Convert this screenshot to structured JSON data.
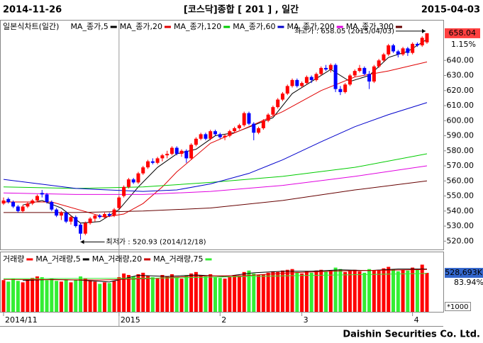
{
  "header": {
    "start": "2014-11-26",
    "title": "[코스닥]종합 [ 201 ] , 일간",
    "end": "2015-04-03"
  },
  "chart_data": [
    {
      "type": "candlestick",
      "title": "일본식차트(일간)",
      "categories": [
        "2014/11",
        null,
        null,
        null,
        null,
        null,
        null,
        null,
        null,
        null,
        null,
        null,
        null,
        null,
        null,
        null,
        null,
        null,
        null,
        null,
        null,
        null,
        null,
        null,
        "2015",
        null,
        null,
        null,
        null,
        null,
        null,
        null,
        null,
        null,
        null,
        null,
        null,
        null,
        null,
        null,
        null,
        null,
        null,
        null,
        null,
        "2",
        null,
        null,
        null,
        null,
        null,
        null,
        null,
        null,
        null,
        null,
        null,
        null,
        null,
        null,
        null,
        null,
        "3",
        null,
        null,
        null,
        null,
        null,
        null,
        null,
        null,
        null,
        null,
        null,
        null,
        null,
        null,
        null,
        null,
        null,
        null,
        null,
        null,
        null,
        null,
        "4",
        null,
        null,
        null
      ],
      "ohlc": [
        [
          545,
          549,
          544,
          547
        ],
        [
          548,
          549,
          545,
          546
        ],
        [
          546,
          547,
          542,
          543
        ],
        [
          543,
          544,
          539,
          540
        ],
        [
          540,
          544,
          539,
          543
        ],
        [
          543,
          546,
          542,
          545
        ],
        [
          545,
          548,
          544,
          547
        ],
        [
          547,
          551,
          546,
          550
        ],
        [
          552,
          554,
          549,
          551
        ],
        [
          551,
          552,
          545,
          546
        ],
        [
          546,
          547,
          540,
          541
        ],
        [
          541,
          542,
          536,
          537
        ],
        [
          537,
          540,
          534,
          539
        ],
        [
          539,
          540,
          532,
          533
        ],
        [
          533,
          537,
          531,
          536
        ],
        [
          536,
          537,
          529,
          530
        ],
        [
          531,
          532,
          520.93,
          525
        ],
        [
          525,
          533,
          524,
          532
        ],
        [
          532,
          536,
          531,
          535
        ],
        [
          535,
          538,
          533,
          537
        ],
        [
          537,
          538,
          535,
          536
        ],
        [
          536,
          539,
          535,
          538
        ],
        [
          538,
          539,
          536,
          537
        ],
        [
          537,
          542,
          536,
          541
        ],
        [
          542,
          550,
          541,
          549
        ],
        [
          550,
          557,
          549,
          556
        ],
        [
          556,
          562,
          555,
          561
        ],
        [
          561,
          562,
          558,
          559
        ],
        [
          559,
          566,
          558,
          565
        ],
        [
          565,
          570,
          564,
          569
        ],
        [
          569,
          574,
          568,
          573
        ],
        [
          573,
          575,
          571,
          572
        ],
        [
          572,
          576,
          571,
          575
        ],
        [
          575,
          578,
          573,
          577
        ],
        [
          577,
          580,
          575,
          578
        ],
        [
          578,
          583,
          577,
          582
        ],
        [
          582,
          583,
          577,
          578
        ],
        [
          578,
          581,
          576,
          580
        ],
        [
          580,
          581,
          572,
          575
        ],
        [
          575,
          585,
          574,
          584
        ],
        [
          584,
          589,
          583,
          588
        ],
        [
          588,
          592,
          587,
          591
        ],
        [
          591,
          592,
          587,
          588
        ],
        [
          588,
          594,
          587,
          593
        ],
        [
          593,
          594,
          590,
          591
        ],
        [
          591,
          592,
          588,
          589
        ],
        [
          589,
          591,
          587,
          590
        ],
        [
          590,
          594,
          589,
          593
        ],
        [
          593,
          596,
          592,
          595
        ],
        [
          595,
          598,
          594,
          597
        ],
        [
          597,
          606,
          596,
          605
        ],
        [
          605,
          606,
          597,
          598
        ],
        [
          598,
          599,
          587,
          592
        ],
        [
          592,
          596,
          591,
          595
        ],
        [
          595,
          601,
          594,
          600
        ],
        [
          600,
          605,
          599,
          604
        ],
        [
          604,
          610,
          603,
          609
        ],
        [
          609,
          615,
          608,
          614
        ],
        [
          614,
          619,
          613,
          618
        ],
        [
          618,
          624,
          617,
          623
        ],
        [
          623,
          628,
          622,
          627
        ],
        [
          627,
          628,
          622,
          623
        ],
        [
          623,
          626,
          622,
          625
        ],
        [
          625,
          630,
          624,
          629
        ],
        [
          629,
          630,
          625,
          627
        ],
        [
          627,
          632,
          626,
          631
        ],
        [
          631,
          636,
          630,
          635
        ],
        [
          635,
          637,
          633,
          634
        ],
        [
          634,
          638,
          632,
          637
        ],
        [
          637,
          638,
          619,
          621
        ],
        [
          621,
          623,
          617,
          619
        ],
        [
          619,
          625,
          618,
          624
        ],
        [
          624,
          631,
          623,
          630
        ],
        [
          630,
          634,
          629,
          633
        ],
        [
          633,
          637,
          632,
          635
        ],
        [
          635,
          636,
          630,
          631
        ],
        [
          631,
          633,
          621,
          626
        ],
        [
          626,
          637,
          625,
          636
        ],
        [
          636,
          641,
          635,
          640
        ],
        [
          640,
          645,
          639,
          644
        ],
        [
          644,
          651,
          643,
          650
        ],
        [
          650,
          651,
          645,
          646
        ],
        [
          646,
          647,
          642,
          644
        ],
        [
          644,
          649,
          643,
          648
        ],
        [
          648,
          649,
          643,
          645
        ],
        [
          645,
          652,
          644,
          651
        ],
        [
          651,
          652,
          649,
          650
        ],
        [
          650,
          656,
          649,
          655
        ],
        [
          652,
          658.05,
          651,
          658.04
        ]
      ],
      "up_color": "#ff0000",
      "down_color": "#0000ff",
      "ylim": [
        514.5,
        666
      ],
      "yticks": [
        {
          "value": 520,
          "label": "520.00"
        },
        {
          "value": 530,
          "label": "530.00"
        },
        {
          "value": 540,
          "label": "540.00"
        },
        {
          "value": 550,
          "label": "550.00"
        },
        {
          "value": 560,
          "label": "560.00"
        },
        {
          "value": 570,
          "label": "570.00"
        },
        {
          "value": 580,
          "label": "580.00"
        },
        {
          "value": 590,
          "label": "590.00"
        },
        {
          "value": 600,
          "label": "600.00"
        },
        {
          "value": 610,
          "label": "610.00"
        },
        {
          "value": 620,
          "label": "620.00"
        },
        {
          "value": 630,
          "label": "630.00"
        },
        {
          "value": 640,
          "label": "640.00"
        }
      ],
      "ma": [
        {
          "name": "MA_종가,5",
          "color": "#000000",
          "points": [
            [
              4,
              544
            ],
            [
              8,
              547
            ],
            [
              12,
              542
            ],
            [
              16,
              532
            ],
            [
              20,
              533
            ],
            [
              24,
              541
            ],
            [
              28,
              556
            ],
            [
              32,
              569
            ],
            [
              36,
              578
            ],
            [
              40,
              581
            ],
            [
              44,
              590
            ],
            [
              48,
              592
            ],
            [
              52,
              597
            ],
            [
              56,
              602
            ],
            [
              60,
              618
            ],
            [
              64,
              626
            ],
            [
              68,
              634
            ],
            [
              72,
              626
            ],
            [
              76,
              630
            ],
            [
              80,
              642
            ],
            [
              84,
              646
            ],
            [
              88,
              654
            ]
          ]
        },
        {
          "name": "MA_종가,20",
          "color": "#e00000",
          "points": [
            [
              0,
              546
            ],
            [
              10,
              546
            ],
            [
              21,
              536
            ],
            [
              25,
              538
            ],
            [
              29,
              545
            ],
            [
              33,
              556
            ],
            [
              36,
              566
            ],
            [
              43,
              585
            ],
            [
              51,
              596
            ],
            [
              58,
              606
            ],
            [
              66,
              620
            ],
            [
              73,
              629
            ],
            [
              80,
              633
            ],
            [
              88,
              639
            ]
          ]
        },
        {
          "name": "MA_종가,120",
          "color": "#00cc00",
          "points": [
            [
              0,
              556
            ],
            [
              15,
              555
            ],
            [
              29,
              556
            ],
            [
              43,
              559
            ],
            [
              58,
              563
            ],
            [
              73,
              569
            ],
            [
              88,
              578
            ]
          ]
        },
        {
          "name": "MA_종가,60",
          "color": "#0000cc",
          "points": [
            [
              0,
              561
            ],
            [
              15,
              555
            ],
            [
              29,
              553
            ],
            [
              36,
              554
            ],
            [
              43,
              558
            ],
            [
              51,
              565
            ],
            [
              58,
              574
            ],
            [
              66,
              586
            ],
            [
              73,
              596
            ],
            [
              80,
              604
            ],
            [
              88,
              612
            ]
          ]
        },
        {
          "name": "MA_종가,200",
          "color": "#e000e0",
          "points": [
            [
              0,
              552
            ],
            [
              15,
              551
            ],
            [
              29,
              551
            ],
            [
              43,
              553
            ],
            [
              58,
              557
            ],
            [
              73,
              563
            ],
            [
              88,
              570
            ]
          ]
        },
        {
          "name": "MA_종가,300",
          "color": "#660000",
          "points": [
            [
              0,
              539
            ],
            [
              15,
              539
            ],
            [
              29,
              540
            ],
            [
              43,
              542
            ],
            [
              58,
              547
            ],
            [
              73,
              554
            ],
            [
              88,
              560
            ]
          ]
        }
      ],
      "annotations": [
        {
          "text": "최고가 : 658.05 (2015/04/03)",
          "color": "#ff0000"
        },
        {
          "text": "최저가 : 520.93 (2014/12/18)",
          "color": "#0000ff"
        }
      ],
      "last": {
        "label": "658.04",
        "change": "1.15%",
        "color": "#ff4040"
      }
    },
    {
      "type": "bar",
      "title": "거래량",
      "title_color": "#ff0000",
      "values": [
        430000,
        410000,
        450000,
        420000,
        400000,
        440000,
        460000,
        480000,
        470000,
        430000,
        450000,
        420000,
        410000,
        440000,
        400000,
        430000,
        480000,
        450000,
        420000,
        410000,
        380000,
        400000,
        390000,
        420000,
        470000,
        520000,
        500000,
        480000,
        510000,
        530000,
        490000,
        470000,
        460000,
        500000,
        480000,
        510000,
        470000,
        450000,
        490000,
        520000,
        540000,
        500000,
        480000,
        510000,
        470000,
        460000,
        450000,
        480000,
        500000,
        490000,
        540000,
        560000,
        520000,
        500000,
        510000,
        530000,
        550000,
        540000,
        560000,
        570000,
        580000,
        540000,
        520000,
        550000,
        530000,
        560000,
        570000,
        550000,
        560000,
        600000,
        580000,
        540000,
        560000,
        570000,
        550000,
        530000,
        580000,
        560000,
        570000,
        590000,
        610000,
        580000,
        550000,
        570000,
        560000,
        600000,
        580000,
        640000,
        528693
      ],
      "up_color": "#ff0000",
      "down_color": "#33ee33",
      "ylim": [
        0,
        750000
      ],
      "ma": [
        {
          "name": "MA_거래량,5",
          "color": "#000000",
          "points": [
            [
              4,
              426000
            ],
            [
              10,
              440000
            ],
            [
              16,
              430000
            ],
            [
              22,
              405000
            ],
            [
              28,
              495000
            ],
            [
              34,
              480000
            ],
            [
              40,
              500000
            ],
            [
              46,
              480000
            ],
            [
              52,
              530000
            ],
            [
              58,
              550000
            ],
            [
              64,
              550000
            ],
            [
              70,
              570000
            ],
            [
              76,
              560000
            ],
            [
              82,
              580000
            ],
            [
              88,
              580000
            ]
          ]
        },
        {
          "name": "MA_거래량,20",
          "color": "#cc0000",
          "points": [
            [
              0,
              440000
            ],
            [
              20,
              432000
            ],
            [
              30,
              450000
            ],
            [
              40,
              485000
            ],
            [
              50,
              490000
            ],
            [
              60,
              530000
            ],
            [
              70,
              555000
            ],
            [
              80,
              565000
            ],
            [
              88,
              575000
            ]
          ]
        },
        {
          "name": "MA_거래량,75",
          "color": "#33ee33",
          "points": [
            [
              0,
              450000
            ],
            [
              30,
              455000
            ],
            [
              60,
              490000
            ],
            [
              88,
              520000
            ]
          ]
        }
      ],
      "last": {
        "label": "528,693K",
        "ratio": "83.94%",
        "color": "#3366cc"
      },
      "unit": "*1000"
    }
  ],
  "footer": "Daishin Securities Co. Ltd."
}
